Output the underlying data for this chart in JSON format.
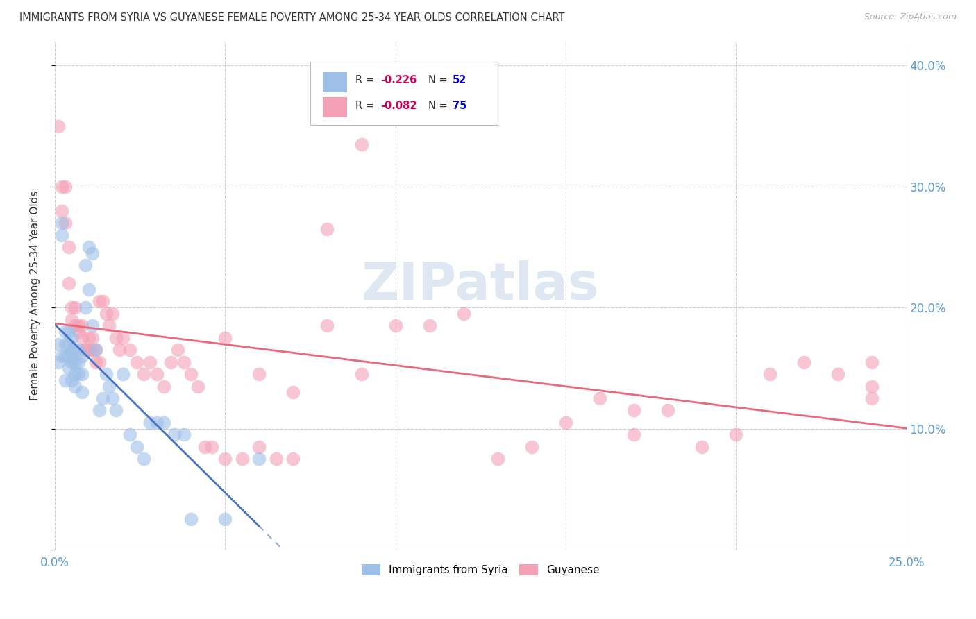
{
  "title": "IMMIGRANTS FROM SYRIA VS GUYANESE FEMALE POVERTY AMONG 25-34 YEAR OLDS CORRELATION CHART",
  "source": "Source: ZipAtlas.com",
  "ylabel": "Female Poverty Among 25-34 Year Olds",
  "xlim": [
    0.0,
    0.25
  ],
  "ylim": [
    0.0,
    0.42
  ],
  "x_tick_pos": [
    0.0,
    0.05,
    0.1,
    0.15,
    0.2,
    0.25
  ],
  "x_tick_labels": [
    "0.0%",
    "",
    "",
    "",
    "",
    "25.0%"
  ],
  "y_tick_pos": [
    0.0,
    0.1,
    0.2,
    0.3,
    0.4
  ],
  "y_tick_labels": [
    "",
    "10.0%",
    "20.0%",
    "30.0%",
    "40.0%"
  ],
  "legend_labels": [
    "Immigrants from Syria",
    "Guyanese"
  ],
  "watermark": "ZIPatlas",
  "watermark_color": "#b8cce4",
  "syria_color": "#9dbfe8",
  "guyanese_color": "#f4a0b5",
  "syria_line_color": "#4472c4",
  "guyanese_line_color": "#e8697a",
  "syria_x": [
    0.001,
    0.001,
    0.002,
    0.002,
    0.002,
    0.003,
    0.003,
    0.003,
    0.003,
    0.004,
    0.004,
    0.004,
    0.004,
    0.005,
    0.005,
    0.005,
    0.005,
    0.006,
    0.006,
    0.006,
    0.006,
    0.007,
    0.007,
    0.007,
    0.008,
    0.008,
    0.008,
    0.009,
    0.009,
    0.01,
    0.01,
    0.011,
    0.011,
    0.012,
    0.013,
    0.014,
    0.015,
    0.016,
    0.017,
    0.018,
    0.02,
    0.022,
    0.024,
    0.026,
    0.028,
    0.03,
    0.032,
    0.035,
    0.038,
    0.04,
    0.05,
    0.06
  ],
  "syria_y": [
    0.17,
    0.155,
    0.26,
    0.27,
    0.16,
    0.14,
    0.16,
    0.17,
    0.18,
    0.15,
    0.16,
    0.18,
    0.17,
    0.14,
    0.155,
    0.165,
    0.175,
    0.135,
    0.145,
    0.155,
    0.165,
    0.145,
    0.155,
    0.165,
    0.13,
    0.145,
    0.16,
    0.2,
    0.235,
    0.215,
    0.25,
    0.185,
    0.245,
    0.165,
    0.115,
    0.125,
    0.145,
    0.135,
    0.125,
    0.115,
    0.145,
    0.095,
    0.085,
    0.075,
    0.105,
    0.105,
    0.105,
    0.095,
    0.095,
    0.025,
    0.025,
    0.075
  ],
  "guyanese_x": [
    0.001,
    0.002,
    0.002,
    0.003,
    0.003,
    0.004,
    0.004,
    0.005,
    0.005,
    0.006,
    0.006,
    0.007,
    0.007,
    0.008,
    0.008,
    0.009,
    0.009,
    0.01,
    0.01,
    0.011,
    0.011,
    0.012,
    0.012,
    0.013,
    0.013,
    0.014,
    0.015,
    0.016,
    0.017,
    0.018,
    0.019,
    0.02,
    0.022,
    0.024,
    0.026,
    0.028,
    0.03,
    0.032,
    0.034,
    0.036,
    0.038,
    0.04,
    0.042,
    0.044,
    0.046,
    0.05,
    0.055,
    0.06,
    0.065,
    0.07,
    0.08,
    0.09,
    0.1,
    0.11,
    0.12,
    0.13,
    0.15,
    0.16,
    0.17,
    0.18,
    0.19,
    0.2,
    0.21,
    0.22,
    0.23,
    0.24,
    0.17,
    0.05,
    0.06,
    0.07,
    0.08,
    0.09,
    0.14,
    0.24,
    0.24
  ],
  "guyanese_y": [
    0.35,
    0.28,
    0.3,
    0.27,
    0.3,
    0.22,
    0.25,
    0.19,
    0.2,
    0.185,
    0.2,
    0.185,
    0.18,
    0.185,
    0.175,
    0.165,
    0.165,
    0.175,
    0.165,
    0.165,
    0.175,
    0.155,
    0.165,
    0.155,
    0.205,
    0.205,
    0.195,
    0.185,
    0.195,
    0.175,
    0.165,
    0.175,
    0.165,
    0.155,
    0.145,
    0.155,
    0.145,
    0.135,
    0.155,
    0.165,
    0.155,
    0.145,
    0.135,
    0.085,
    0.085,
    0.075,
    0.075,
    0.085,
    0.075,
    0.075,
    0.265,
    0.335,
    0.185,
    0.185,
    0.195,
    0.075,
    0.105,
    0.125,
    0.115,
    0.115,
    0.085,
    0.095,
    0.145,
    0.155,
    0.145,
    0.155,
    0.095,
    0.175,
    0.145,
    0.13,
    0.185,
    0.145,
    0.085,
    0.125,
    0.135
  ]
}
